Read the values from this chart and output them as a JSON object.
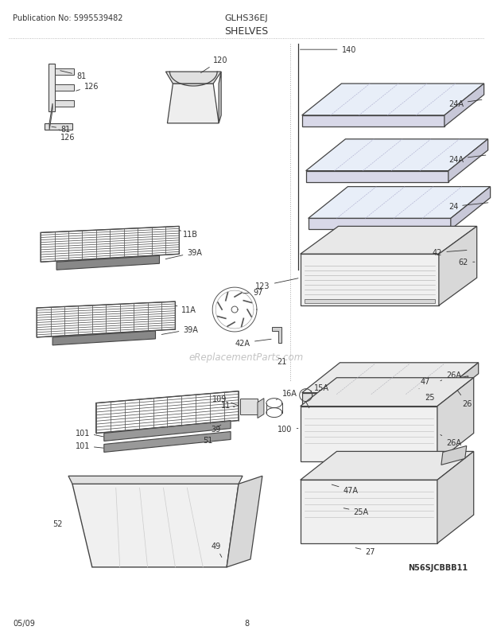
{
  "title": "SHELVES",
  "pub_no": "Publication No: 5995539482",
  "model": "GLHS36EJ",
  "date": "05/09",
  "page": "8",
  "diagram_id": "N56SJCBBB11",
  "bg_color": "#ffffff",
  "text_color": "#333333",
  "label_fontsize": 7.0,
  "title_fontsize": 9,
  "header_fontsize": 8
}
